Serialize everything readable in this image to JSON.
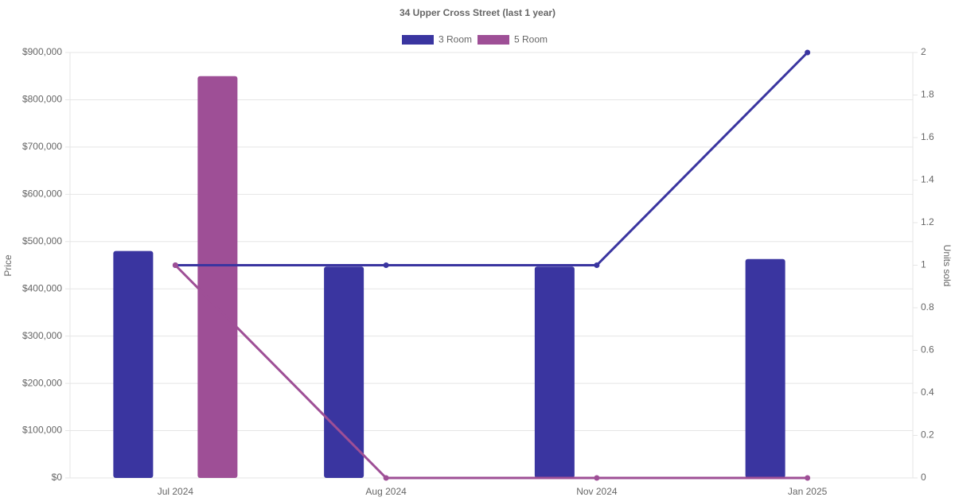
{
  "chart_data": {
    "type": "bar",
    "title": "34 Upper Cross Street (last 1 year)",
    "categories": [
      "Jul 2024",
      "Aug 2024",
      "Nov 2024",
      "Jan 2025"
    ],
    "y_label": "Price",
    "y2_label": "Units sold",
    "series": [
      {
        "name": "3 Room",
        "type": "bar",
        "color": "#3a35a0",
        "values": [
          480000,
          447000,
          447000,
          463000
        ]
      },
      {
        "name": "5 Room",
        "type": "bar",
        "color": "#9e4f96",
        "values": [
          850000,
          null,
          null,
          null
        ]
      },
      {
        "type": "line",
        "axis": "y2",
        "color": "#3a35a0",
        "values": [
          1,
          1,
          1,
          2
        ]
      },
      {
        "type": "line",
        "axis": "y2",
        "color": "#9e4f96",
        "values": [
          1,
          0,
          0,
          0
        ]
      }
    ],
    "ylim": [
      0,
      900000
    ],
    "yticks": [
      {
        "value": 0,
        "label": "$0"
      },
      {
        "value": 100000,
        "label": "$100,000"
      },
      {
        "value": 200000,
        "label": "$200,000"
      },
      {
        "value": 300000,
        "label": "$300,000"
      },
      {
        "value": 400000,
        "label": "$400,000"
      },
      {
        "value": 500000,
        "label": "$500,000"
      },
      {
        "value": 600000,
        "label": "$600,000"
      },
      {
        "value": 700000,
        "label": "$700,000"
      },
      {
        "value": 800000,
        "label": "$800,000"
      },
      {
        "value": 900000,
        "label": "$900,000"
      }
    ],
    "y2lim": [
      0,
      2
    ],
    "y2ticks": [
      0,
      0.2,
      0.4,
      0.6,
      0.8,
      1,
      1.2,
      1.4,
      1.6,
      1.8,
      2
    ],
    "grid": true
  }
}
